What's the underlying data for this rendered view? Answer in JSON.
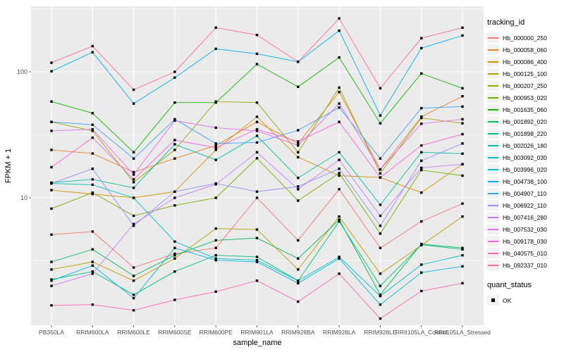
{
  "chart_data": {
    "type": "line",
    "title": "",
    "xlabel": "sample_name",
    "ylabel": "FPKM + 1",
    "y_scale": "log10",
    "ylim": [
      1,
      320
    ],
    "y_ticks": [
      10,
      100
    ],
    "y_minor": [
      3.162,
      31.62,
      316.2
    ],
    "grid": "on",
    "panel_bg": "#EBEBEB",
    "grid_color": "#FFFFFF",
    "tick_label_color": "#4D4D4D",
    "axis_title_color": "#000000",
    "marker": "black-square",
    "categories": [
      "PB350LA",
      "RRIM600LA",
      "RRIM600LE",
      "RRIM600SE",
      "RRIM600PE",
      "RRIM901LA",
      "RRIM928BA",
      "RRIM928LA",
      "RRIM928LE",
      "RRII105LA_Control",
      "RRII105LA_Stressed"
    ],
    "series": [
      {
        "name": "Hb_000000_250",
        "color": "#F8766D",
        "values": [
          5.1,
          5.4,
          2.8,
          3.6,
          4.0,
          10,
          4.6,
          11.7,
          4.0,
          6.5,
          9.0
        ]
      },
      {
        "name": "Hb_000058_060",
        "color": "#E9842C",
        "values": [
          24,
          22.5,
          16,
          20.5,
          26,
          40,
          27,
          69,
          16.8,
          44,
          64
        ]
      },
      {
        "name": "Hb_000086_400",
        "color": "#D69100",
        "values": [
          11.5,
          10.7,
          10,
          11.2,
          24,
          44,
          21,
          15,
          14.5,
          11,
          18.5
        ]
      },
      {
        "name": "Hb_000125_100",
        "color": "#BC9D00",
        "values": [
          2.7,
          3.1,
          2.2,
          3.3,
          5.7,
          5.6,
          2.7,
          7.1,
          2.5,
          4.2,
          7.1
        ]
      },
      {
        "name": "Hb_000207_250",
        "color": "#9CA700",
        "values": [
          40,
          34,
          13.3,
          24,
          58,
          57,
          23,
          75,
          15.6,
          43,
          39
        ]
      },
      {
        "name": "Hb_000953_020",
        "color": "#6FB000",
        "values": [
          8.2,
          11,
          7.2,
          8.7,
          10,
          20.6,
          9.5,
          15.7,
          5.2,
          16.6,
          15
        ]
      },
      {
        "name": "Hb_001635_060",
        "color": "#13B600",
        "values": [
          58,
          47,
          23,
          57,
          57,
          115,
          76,
          130,
          39,
          97,
          74
        ]
      },
      {
        "name": "Hb_001892_020",
        "color": "#00BB57",
        "values": [
          3.1,
          3.9,
          2.4,
          3.5,
          4.6,
          4.8,
          3.3,
          6.7,
          1.7,
          4.3,
          4.0
        ]
      },
      {
        "name": "Hb_001898_220",
        "color": "#00BF7F",
        "values": [
          2.25,
          2.6,
          1.7,
          2.6,
          3.5,
          3.4,
          2.2,
          6.5,
          2.0,
          4.25,
          3.9
        ]
      },
      {
        "name": "Hb_002026_180",
        "color": "#00C1A2",
        "values": [
          13.2,
          14,
          12,
          26.6,
          20,
          31,
          14.4,
          23,
          8.8,
          23,
          22.4
        ]
      },
      {
        "name": "Hb_003092_030",
        "color": "#00BFC4",
        "values": [
          13.0,
          12.7,
          10,
          4.5,
          3.3,
          3.2,
          2.2,
          3.4,
          1.66,
          2.95,
          3.5
        ]
      },
      {
        "name": "Hb_003996_020",
        "color": "#00BADE",
        "values": [
          2.2,
          2.9,
          1.6,
          4.0,
          3.2,
          3.1,
          2.1,
          3.3,
          1.42,
          2.55,
          2.86
        ]
      },
      {
        "name": "Hb_004738_100",
        "color": "#00B0F6",
        "values": [
          101,
          143,
          56,
          90,
          152,
          139,
          120,
          212,
          45,
          154,
          194
        ]
      },
      {
        "name": "Hb_004907_110",
        "color": "#35A2FF",
        "values": [
          40,
          38,
          20.5,
          42,
          27,
          27.5,
          34.4,
          52,
          20.5,
          51.5,
          53
        ]
      },
      {
        "name": "Hb_006922_110",
        "color": "#9590FF",
        "values": [
          13,
          17,
          6.0,
          11.2,
          13,
          11.2,
          12.3,
          17,
          6.0,
          19.7,
          27
        ]
      },
      {
        "name": "Hb_007416_280",
        "color": "#C77CFF",
        "values": [
          2.0,
          2.5,
          6.2,
          10,
          12.8,
          23,
          11.7,
          20,
          7.2,
          17.3,
          18.5
        ]
      },
      {
        "name": "Hb_007532_030",
        "color": "#E76BF3",
        "values": [
          34,
          35,
          15.3,
          41,
          36,
          34,
          26,
          56,
          16.8,
          38.7,
          42
        ]
      },
      {
        "name": "Hb_009178_030",
        "color": "#FA62DB",
        "values": [
          17.5,
          30,
          14,
          28.7,
          25,
          35,
          28,
          40,
          14.5,
          26,
          32
        ]
      },
      {
        "name": "Hb_040575_010",
        "color": "#FF62BC",
        "values": [
          1.4,
          1.42,
          1.28,
          1.55,
          1.8,
          2.2,
          1.5,
          2.5,
          1.1,
          1.82,
          2.1
        ]
      },
      {
        "name": "Hb_092337_010",
        "color": "#FF6A98",
        "values": [
          118,
          160,
          72,
          100,
          224,
          196,
          120,
          265,
          74,
          185,
          224
        ]
      }
    ]
  },
  "legend": {
    "tracking_title": "tracking_id",
    "quant_title": "quant_status",
    "quant_items": [
      {
        "label": "OK",
        "marker": "black-square"
      }
    ]
  },
  "axes": {
    "x_title": "sample_name",
    "y_title": "FPKM + 1",
    "y_tick_labels": [
      "100",
      "10"
    ]
  }
}
